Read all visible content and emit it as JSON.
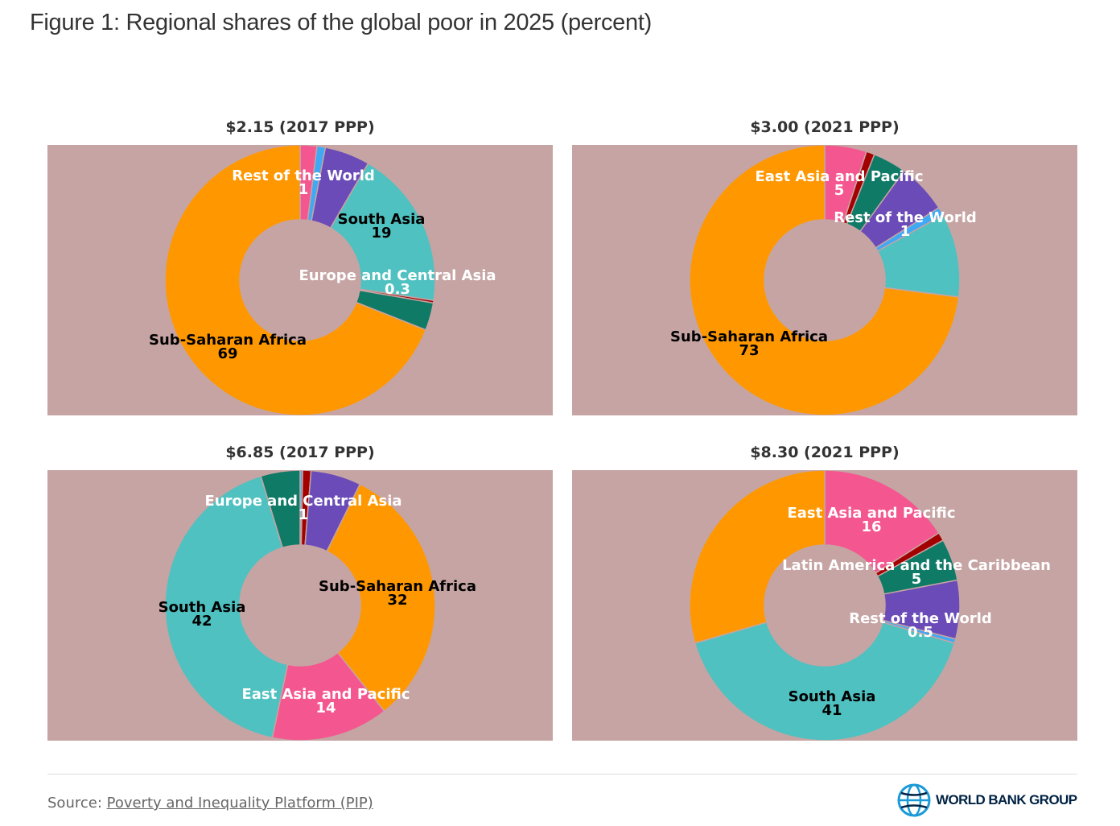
{
  "title": "Figure 1: Regional shares of the global poor in 2025 (percent)",
  "source_prefix": "Source: ",
  "source_link": "Poverty and Inequality Platform (PIP)",
  "logo_text": "WORLD BANK GROUP",
  "colors": {
    "panel_bg": "#c6a4a3",
    "East Asia and Pacific": "#f4578f",
    "Rest of the World": "#3fa9f5",
    "purple_region": "#6a4bb8",
    "South Asia": "#4fc1c0",
    "Europe and Central Asia": "#a30000",
    "Latin America and the Caribbean": "#0f7a66",
    "Sub-Saharan Africa": "#ff9800"
  },
  "chart_data": [
    {
      "type": "pie",
      "title": "$2.15 (2017 PPP)",
      "donut": true,
      "slices": [
        {
          "color": "#f4578f",
          "value": 2
        },
        {
          "color": "#3fa9f5",
          "value": 1
        },
        {
          "color": "#6a4bb8",
          "value": 5.4
        },
        {
          "color": "#4fc1c0",
          "value": 19
        },
        {
          "color": "#a30000",
          "value": 0.3
        },
        {
          "color": "#0f7a66",
          "value": 3.3
        },
        {
          "color": "#ff9800",
          "value": 69
        }
      ],
      "labels": [
        {
          "name": "Rest of the World",
          "value": "1",
          "text_color": "white"
        },
        {
          "name": "South Asia",
          "value": "19",
          "text_color": "black"
        },
        {
          "name": "Europe and Central Asia",
          "value": "0.3",
          "text_color": "white"
        },
        {
          "name": "Sub-Saharan Africa",
          "value": "69",
          "text_color": "black"
        }
      ]
    },
    {
      "type": "pie",
      "title": "$3.00 (2021 PPP)",
      "donut": true,
      "slices": [
        {
          "color": "#f4578f",
          "value": 5
        },
        {
          "color": "#a30000",
          "value": 1
        },
        {
          "color": "#0f7a66",
          "value": 4
        },
        {
          "color": "#6a4bb8",
          "value": 6
        },
        {
          "color": "#3fa9f5",
          "value": 1
        },
        {
          "color": "#4fc1c0",
          "value": 10
        },
        {
          "color": "#ff9800",
          "value": 73
        }
      ],
      "labels": [
        {
          "name": "East Asia and Pacific",
          "value": "5",
          "text_color": "white"
        },
        {
          "name": "Rest of the World",
          "value": "1",
          "text_color": "white"
        },
        {
          "name": "Sub-Saharan Africa",
          "value": "73",
          "text_color": "black"
        }
      ]
    },
    {
      "type": "pie",
      "title": "$6.85 (2017 PPP)",
      "donut": true,
      "slices": [
        {
          "color": "#3fa9f5",
          "value": 0.3
        },
        {
          "color": "#a30000",
          "value": 1
        },
        {
          "color": "#6a4bb8",
          "value": 6
        },
        {
          "color": "#ff9800",
          "value": 32
        },
        {
          "color": "#f4578f",
          "value": 14
        },
        {
          "color": "#4fc1c0",
          "value": 42
        },
        {
          "color": "#0f7a66",
          "value": 4.7
        }
      ],
      "labels": [
        {
          "name": "Europe and Central Asia",
          "value": "1",
          "text_color": "white"
        },
        {
          "name": "Sub-Saharan Africa",
          "value": "32",
          "text_color": "black"
        },
        {
          "name": "South Asia",
          "value": "42",
          "text_color": "black"
        },
        {
          "name": "East Asia and Pacific",
          "value": "14",
          "text_color": "white"
        }
      ]
    },
    {
      "type": "pie",
      "title": "$8.30 (2021 PPP)",
      "donut": true,
      "slices": [
        {
          "color": "#f4578f",
          "value": 16
        },
        {
          "color": "#a30000",
          "value": 1
        },
        {
          "color": "#0f7a66",
          "value": 5
        },
        {
          "color": "#6a4bb8",
          "value": 7
        },
        {
          "color": "#3fa9f5",
          "value": 0.5
        },
        {
          "color": "#4fc1c0",
          "value": 41
        },
        {
          "color": "#ff9800",
          "value": 29.5
        }
      ],
      "labels": [
        {
          "name": "East Asia and Pacific",
          "value": "16",
          "text_color": "white"
        },
        {
          "name": "Latin America and the Caribbean",
          "value": "5",
          "text_color": "white"
        },
        {
          "name": "Rest of the World",
          "value": "0.5",
          "text_color": "white"
        },
        {
          "name": "South Asia",
          "value": "41",
          "text_color": "black"
        }
      ]
    }
  ]
}
